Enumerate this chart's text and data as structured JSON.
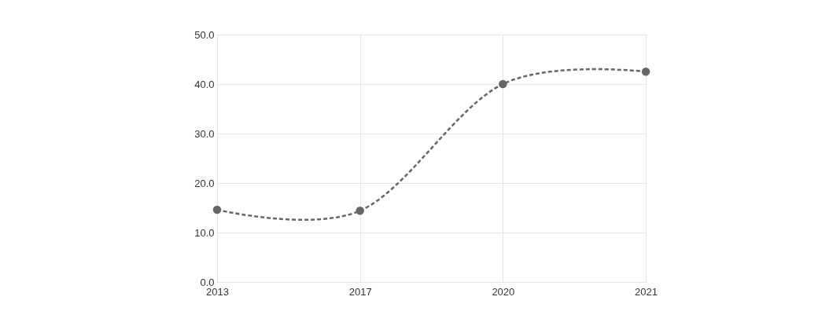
{
  "chart_data": {
    "type": "line",
    "categories": [
      "2013",
      "2017",
      "2020",
      "2021"
    ],
    "series": [
      {
        "color": "#666666",
        "values": [
          14.6,
          14.4,
          40.0,
          42.5
        ]
      }
    ],
    "ylim": [
      0,
      50
    ],
    "yticks": [
      {
        "value": 0,
        "label": "0.0"
      },
      {
        "value": 10,
        "label": "10.0"
      },
      {
        "value": 20,
        "label": "20.0"
      },
      {
        "value": 30,
        "label": "30.0"
      },
      {
        "value": 40,
        "label": "40.0"
      },
      {
        "value": 50,
        "label": "50.0"
      }
    ],
    "grid": true,
    "marker": "circle",
    "line_style": "dashed"
  }
}
